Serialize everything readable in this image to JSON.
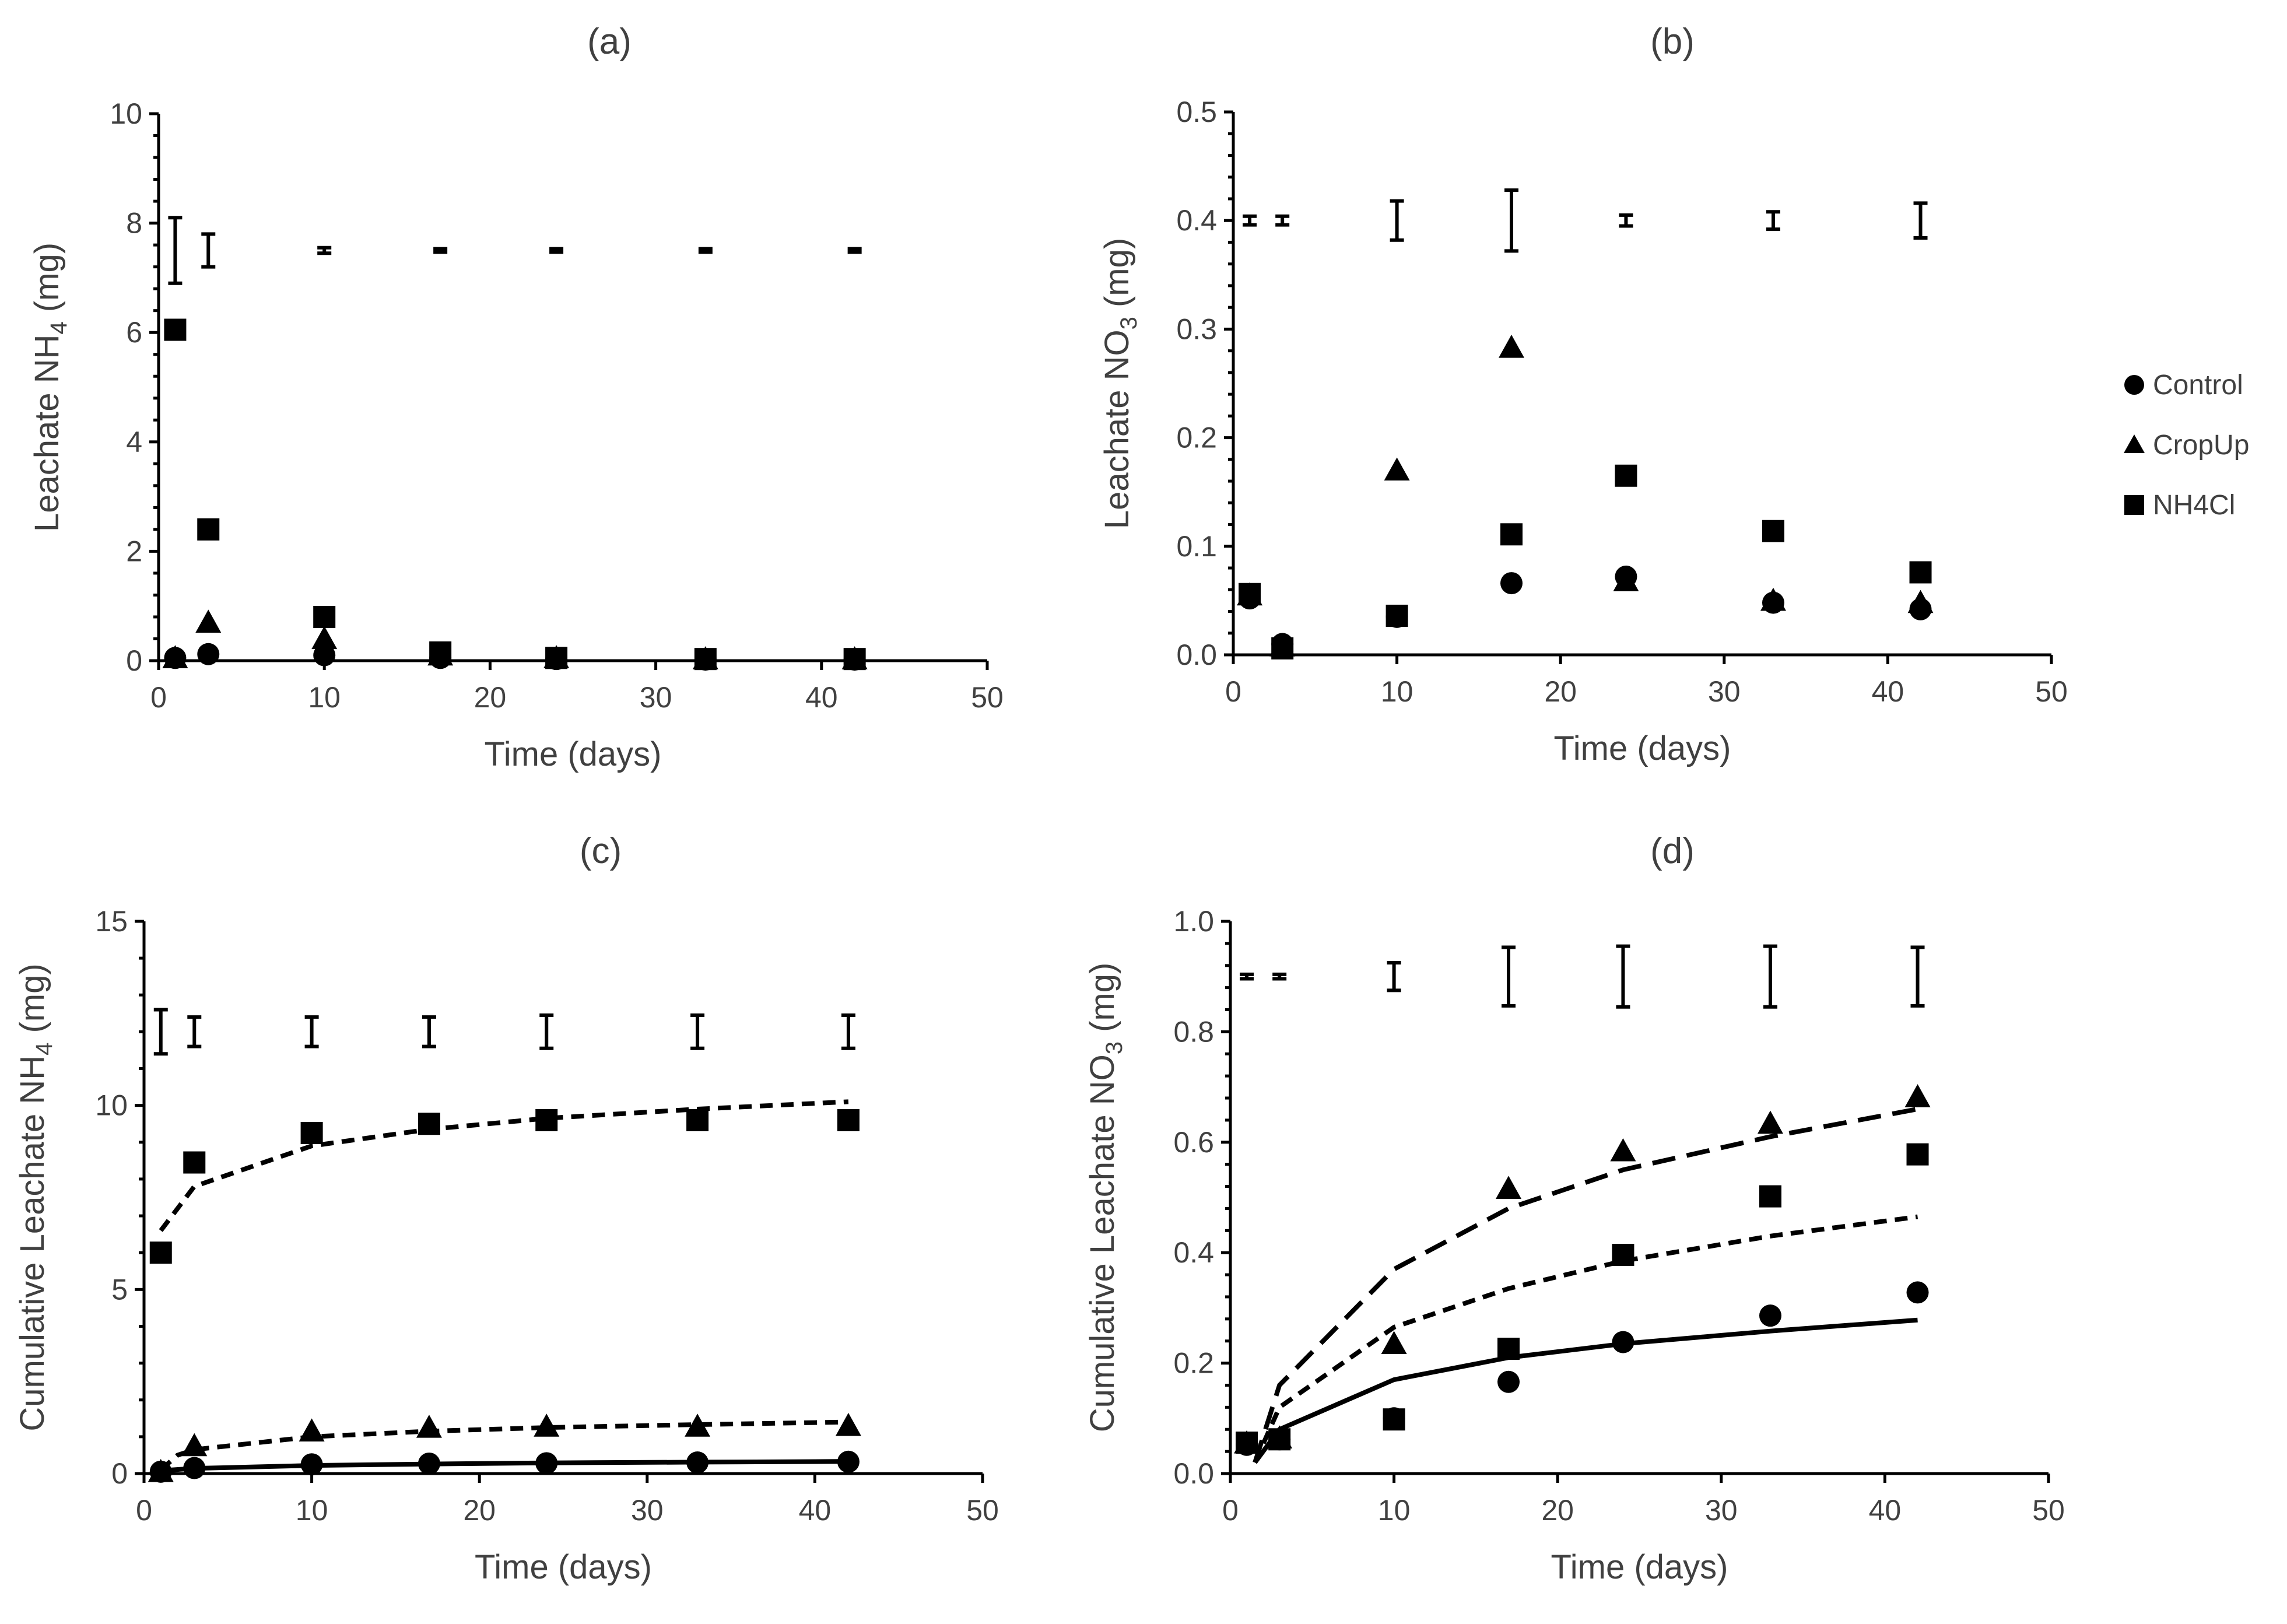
{
  "chart_data": [
    {
      "panel": "(a)",
      "type": "scatter",
      "xlabel": "Time (days)",
      "ylabel_main": "Leachate NH",
      "ylabel_sub": "4",
      "ylabel_tail": " (mg)",
      "xlim": [
        0,
        50
      ],
      "xticks": [
        0,
        10,
        20,
        30,
        40,
        50
      ],
      "ylim": [
        0,
        10
      ],
      "yticks": [
        0,
        2,
        4,
        6,
        8,
        10
      ],
      "ydecimals": 0,
      "series": [
        {
          "name": "Control",
          "marker": "circle",
          "x": [
            1,
            3,
            10,
            17,
            24,
            33,
            42
          ],
          "y": [
            0.05,
            0.12,
            0.1,
            0.05,
            0.03,
            0.02,
            0.02
          ]
        },
        {
          "name": "CropUp",
          "marker": "triangle",
          "x": [
            1,
            3,
            10,
            17,
            24,
            33,
            42
          ],
          "y": [
            0.05,
            0.7,
            0.4,
            0.1,
            0.05,
            0.03,
            0.03
          ]
        },
        {
          "name": "NH4Cl",
          "marker": "square",
          "x": [
            1,
            3,
            10,
            17,
            24,
            33,
            42
          ],
          "y": [
            6.05,
            2.4,
            0.8,
            0.15,
            0.05,
            0.03,
            0.03
          ]
        }
      ],
      "lines": [],
      "errorbars": [
        {
          "x": 1,
          "y": 7.5,
          "half": 0.6
        },
        {
          "x": 3,
          "y": 7.5,
          "half": 0.3
        },
        {
          "x": 10,
          "y": 7.5,
          "half": 0.05
        },
        {
          "x": 17,
          "y": 7.5,
          "half": 0.03
        },
        {
          "x": 24,
          "y": 7.5,
          "half": 0.03
        },
        {
          "x": 33,
          "y": 7.5,
          "half": 0.03
        },
        {
          "x": 42,
          "y": 7.5,
          "half": 0.03
        }
      ]
    },
    {
      "panel": "(b)",
      "type": "scatter",
      "xlabel": "Time (days)",
      "ylabel_main": "Leachate NO",
      "ylabel_sub": "3",
      "ylabel_tail": " (mg)",
      "xlim": [
        0,
        50
      ],
      "xticks": [
        0,
        10,
        20,
        30,
        40,
        50
      ],
      "ylim": [
        0,
        0.5
      ],
      "yticks": [
        0,
        0.1,
        0.2,
        0.3,
        0.4,
        0.5
      ],
      "ydecimals": 1,
      "series": [
        {
          "name": "Control",
          "marker": "circle",
          "x": [
            1,
            3,
            10,
            17,
            24,
            33,
            42
          ],
          "y": [
            0.052,
            0.01,
            0.035,
            0.066,
            0.072,
            0.048,
            0.042
          ]
        },
        {
          "name": "CropUp",
          "marker": "triangle",
          "x": [
            1,
            3,
            10,
            17,
            24,
            33,
            42
          ],
          "y": [
            0.055,
            0.008,
            0.17,
            0.283,
            0.068,
            0.05,
            0.048
          ]
        },
        {
          "name": "NH4Cl",
          "marker": "square",
          "x": [
            1,
            3,
            10,
            17,
            24,
            33,
            42
          ],
          "y": [
            0.056,
            0.006,
            0.036,
            0.111,
            0.165,
            0.114,
            0.076
          ]
        }
      ],
      "lines": [],
      "errorbars": [
        {
          "x": 1,
          "y": 0.4,
          "half": 0.004
        },
        {
          "x": 3,
          "y": 0.4,
          "half": 0.004
        },
        {
          "x": 10,
          "y": 0.4,
          "half": 0.018
        },
        {
          "x": 17,
          "y": 0.4,
          "half": 0.028
        },
        {
          "x": 24,
          "y": 0.4,
          "half": 0.005
        },
        {
          "x": 33,
          "y": 0.4,
          "half": 0.008
        },
        {
          "x": 42,
          "y": 0.4,
          "half": 0.016
        }
      ]
    },
    {
      "panel": "(c)",
      "type": "scatter",
      "xlabel": "Time (days)",
      "ylabel_main": "Cumulative Leachate NH",
      "ylabel_sub": "4",
      "ylabel_tail": " (mg)",
      "xlim": [
        0,
        50
      ],
      "xticks": [
        0,
        10,
        20,
        30,
        40,
        50
      ],
      "ylim": [
        0,
        15
      ],
      "yticks": [
        0,
        5,
        10,
        15
      ],
      "ydecimals": 0,
      "series": [
        {
          "name": "Control",
          "marker": "circle",
          "x": [
            1,
            3,
            10,
            17,
            24,
            33,
            42
          ],
          "y": [
            0.05,
            0.15,
            0.25,
            0.27,
            0.28,
            0.3,
            0.32
          ]
        },
        {
          "name": "CropUp",
          "marker": "triangle",
          "x": [
            1,
            3,
            10,
            17,
            24,
            33,
            42
          ],
          "y": [
            0.05,
            0.75,
            1.15,
            1.25,
            1.28,
            1.28,
            1.3
          ]
        },
        {
          "name": "NH4Cl",
          "marker": "square",
          "x": [
            1,
            3,
            10,
            17,
            24,
            33,
            42
          ],
          "y": [
            6.0,
            8.45,
            9.25,
            9.5,
            9.6,
            9.6,
            9.6
          ]
        }
      ],
      "lines": [
        {
          "name": "Control fit",
          "style": "solid",
          "x": [
            1,
            3,
            10,
            17,
            24,
            33,
            42
          ],
          "y": [
            0.08,
            0.14,
            0.22,
            0.26,
            0.29,
            0.31,
            0.33
          ]
        },
        {
          "name": "CropUp fit",
          "style": "dash",
          "x": [
            1,
            2,
            3,
            10,
            17,
            24,
            33,
            42
          ],
          "y": [
            0.1,
            0.5,
            0.65,
            1.0,
            1.15,
            1.25,
            1.33,
            1.4
          ]
        },
        {
          "name": "NH4Cl fit",
          "style": "dash",
          "x": [
            1,
            3,
            10,
            17,
            24,
            33,
            42
          ],
          "y": [
            6.6,
            7.8,
            8.9,
            9.35,
            9.65,
            9.9,
            10.1
          ]
        }
      ],
      "errorbars": [
        {
          "x": 1,
          "y": 12.0,
          "half": 0.6
        },
        {
          "x": 3,
          "y": 12.0,
          "half": 0.4
        },
        {
          "x": 10,
          "y": 12.0,
          "half": 0.4
        },
        {
          "x": 17,
          "y": 12.0,
          "half": 0.4
        },
        {
          "x": 24,
          "y": 12.0,
          "half": 0.45
        },
        {
          "x": 33,
          "y": 12.0,
          "half": 0.45
        },
        {
          "x": 42,
          "y": 12.0,
          "half": 0.45
        }
      ]
    },
    {
      "panel": "(d)",
      "type": "scatter",
      "xlabel": "Time (days)",
      "ylabel_main": "Cumulative Leachate NO",
      "ylabel_sub": "3",
      "ylabel_tail": " (mg)",
      "xlim": [
        0,
        50
      ],
      "xticks": [
        0,
        10,
        20,
        30,
        40,
        50
      ],
      "ylim": [
        0,
        1.0
      ],
      "yticks": [
        0,
        0.2,
        0.4,
        0.6,
        0.8,
        1.0
      ],
      "ydecimals": 1,
      "series": [
        {
          "name": "Control",
          "marker": "circle",
          "x": [
            1,
            3,
            10,
            17,
            24,
            33,
            42
          ],
          "y": [
            0.052,
            0.062,
            0.1,
            0.166,
            0.238,
            0.286,
            0.328
          ]
        },
        {
          "name": "CropUp",
          "marker": "triangle",
          "x": [
            1,
            3,
            10,
            17,
            24,
            33,
            42
          ],
          "y": [
            0.055,
            0.064,
            0.235,
            0.516,
            0.584,
            0.634,
            0.682
          ]
        },
        {
          "name": "NH4Cl",
          "marker": "square",
          "x": [
            1,
            3,
            10,
            17,
            24,
            33,
            42
          ],
          "y": [
            0.056,
            0.062,
            0.098,
            0.226,
            0.396,
            0.502,
            0.578
          ]
        }
      ],
      "lines": [
        {
          "name": "Control fit",
          "style": "solid",
          "x": [
            1.5,
            3,
            10,
            17,
            24,
            33,
            42
          ],
          "y": [
            0.02,
            0.08,
            0.17,
            0.21,
            0.235,
            0.258,
            0.278
          ]
        },
        {
          "name": "CropUp fit",
          "style": "longdash",
          "x": [
            1.5,
            3,
            10,
            17,
            24,
            33,
            42
          ],
          "y": [
            0.02,
            0.16,
            0.37,
            0.48,
            0.55,
            0.61,
            0.66
          ]
        },
        {
          "name": "NH4Cl fit",
          "style": "dash",
          "x": [
            1.5,
            3,
            10,
            17,
            24,
            33,
            42
          ],
          "y": [
            0.02,
            0.12,
            0.265,
            0.335,
            0.385,
            0.43,
            0.465
          ]
        }
      ],
      "errorbars": [
        {
          "x": 1,
          "y": 0.9,
          "half": 0.004
        },
        {
          "x": 3,
          "y": 0.9,
          "half": 0.004
        },
        {
          "x": 10,
          "y": 0.9,
          "half": 0.025
        },
        {
          "x": 17,
          "y": 0.9,
          "half": 0.053
        },
        {
          "x": 24,
          "y": 0.9,
          "half": 0.055
        },
        {
          "x": 33,
          "y": 0.9,
          "half": 0.055
        },
        {
          "x": 42,
          "y": 0.9,
          "half": 0.053
        }
      ]
    }
  ],
  "legend": {
    "placement": "right",
    "items": [
      {
        "label": "Control",
        "marker": "circle"
      },
      {
        "label": "CropUp",
        "marker": "triangle"
      },
      {
        "label": "NH4Cl",
        "marker": "square"
      }
    ]
  }
}
